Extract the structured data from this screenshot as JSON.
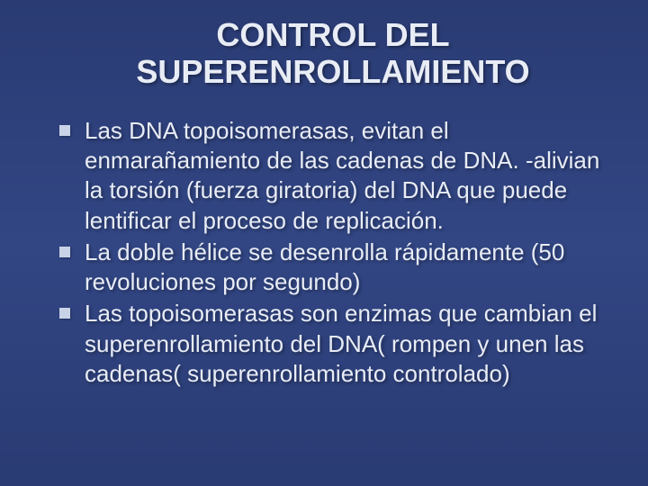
{
  "slide": {
    "title_line1": "CONTROL DEL",
    "title_line2": "SUPERENROLLAMIENTO",
    "title_fontsize": 36,
    "body_fontsize": 26,
    "background_gradient": [
      "#2a3b73",
      "#324684",
      "#2a3b73"
    ],
    "text_color": "#e8ecf5",
    "bullet_color": "#c9d3e8",
    "bullet_shape": "square",
    "bullets": [
      "Las DNA topoisomerasas, evitan el enmarañamiento de las cadenas de DNA. -alivian la torsión (fuerza giratoria) del DNA que puede lentificar el proceso de replicación.",
      "La doble hélice se desenrolla rápidamente (50 revoluciones por segundo)",
      "Las topoisomerasas son enzimas que cambian el superenrollamiento del DNA( rompen y unen las cadenas( superenrollamiento controlado)"
    ]
  }
}
